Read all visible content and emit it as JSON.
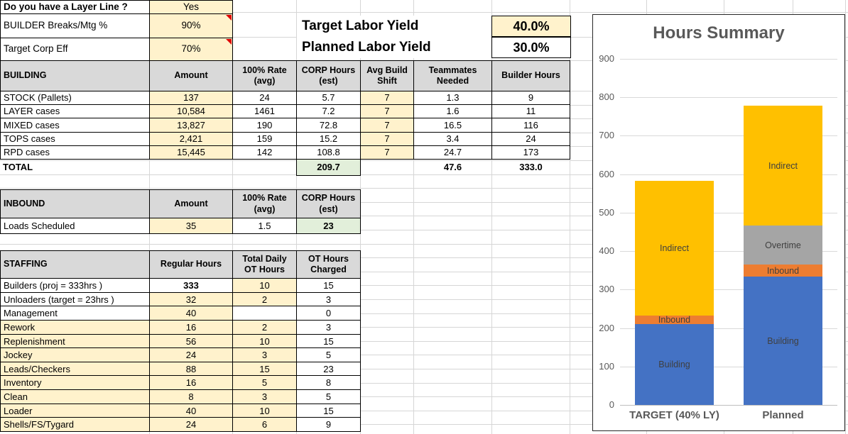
{
  "top_inputs": {
    "rows": [
      {
        "label": "Do you have a Layer Line ?",
        "value": "Yes",
        "bold_label": true,
        "comment_flag": false
      },
      {
        "label": "BUILDER Breaks/Mtg %",
        "value": "90%",
        "bold_label": false,
        "comment_flag": true
      },
      {
        "label": "Target Corp Eff",
        "value": "70%",
        "bold_label": false,
        "comment_flag": true
      }
    ]
  },
  "yield_section": {
    "rows": [
      {
        "label": "Target Labor Yield",
        "value": "40.0%",
        "value_fill": "#FFF2CC"
      },
      {
        "label": "Planned Labor Yield",
        "value": "30.0%",
        "value_fill": "#FFFFFF"
      }
    ]
  },
  "building_table": {
    "headers": [
      "BUILDING",
      "Amount",
      "100% Rate (avg)",
      "CORP Hours (est)",
      "Avg Build Shift",
      "Teammates Needed",
      "Builder Hours"
    ],
    "rows": [
      [
        "STOCK (Pallets)",
        "137",
        "24",
        "5.7",
        "7",
        "1.3",
        "9"
      ],
      [
        "LAYER cases",
        "10,584",
        "1461",
        "7.2",
        "7",
        "1.6",
        "11"
      ],
      [
        "MIXED cases",
        "13,827",
        "190",
        "72.8",
        "7",
        "16.5",
        "116"
      ],
      [
        "TOPS cases",
        "2,421",
        "159",
        "15.2",
        "7",
        "3.4",
        "24"
      ],
      [
        "RPD cases",
        "15,445",
        "142",
        "108.8",
        "7",
        "24.7",
        "173"
      ]
    ],
    "total_row": {
      "label": "TOTAL",
      "corp_hours": "209.7",
      "teammates": "47.6",
      "builder_hours": "333.0"
    }
  },
  "inbound_table": {
    "headers": [
      "INBOUND",
      "Amount",
      "100% Rate (avg)",
      "CORP Hours (est)"
    ],
    "rows": [
      [
        "Loads Scheduled",
        "35",
        "1.5",
        "23"
      ]
    ]
  },
  "staffing_table": {
    "headers": [
      "STAFFING",
      "Regular Hours",
      "Total Daily OT Hours",
      "OT Hours Charged"
    ],
    "rows": [
      {
        "cells": [
          "Builders (proj = 333hrs )",
          "333",
          "10",
          "15"
        ],
        "fills": [
          "w",
          "w",
          "c",
          "w"
        ],
        "bold_regular": true
      },
      {
        "cells": [
          "Unloaders (target = 23hrs )",
          "32",
          "2",
          "3"
        ],
        "fills": [
          "w",
          "c",
          "c",
          "w"
        ],
        "bold_regular": false
      },
      {
        "cells": [
          "Management",
          "40",
          "",
          "0"
        ],
        "fills": [
          "w",
          "c",
          "w",
          "w"
        ],
        "bold_regular": false
      },
      {
        "cells": [
          "Rework",
          "16",
          "2",
          "3"
        ],
        "fills": [
          "c",
          "c",
          "c",
          "w"
        ],
        "bold_regular": false
      },
      {
        "cells": [
          "Replenishment",
          "56",
          "10",
          "15"
        ],
        "fills": [
          "c",
          "c",
          "c",
          "w"
        ],
        "bold_regular": false
      },
      {
        "cells": [
          "Jockey",
          "24",
          "3",
          "5"
        ],
        "fills": [
          "c",
          "c",
          "c",
          "w"
        ],
        "bold_regular": false
      },
      {
        "cells": [
          "Leads/Checkers",
          "88",
          "15",
          "23"
        ],
        "fills": [
          "c",
          "c",
          "c",
          "w"
        ],
        "bold_regular": false
      },
      {
        "cells": [
          "Inventory",
          "16",
          "5",
          "8"
        ],
        "fills": [
          "c",
          "c",
          "c",
          "w"
        ],
        "bold_regular": false
      },
      {
        "cells": [
          "Clean",
          "8",
          "3",
          "5"
        ],
        "fills": [
          "c",
          "c",
          "c",
          "w"
        ],
        "bold_regular": false
      },
      {
        "cells": [
          "Loader",
          "40",
          "10",
          "15"
        ],
        "fills": [
          "c",
          "c",
          "c",
          "w"
        ],
        "bold_regular": false
      },
      {
        "cells": [
          "Shells/FS/Tygard",
          "24",
          "6",
          "9"
        ],
        "fills": [
          "c",
          "c",
          "c",
          "w"
        ],
        "bold_regular": false
      }
    ]
  },
  "chart_data": {
    "type": "bar",
    "stacked": true,
    "title": "Hours Summary",
    "categories": [
      "TARGET (40% LY)",
      "Planned"
    ],
    "series": [
      {
        "name": "Building",
        "color": "#4472C4",
        "values": [
          210,
          333
        ]
      },
      {
        "name": "Inbound",
        "color": "#ED7D31",
        "values": [
          23,
          32
        ]
      },
      {
        "name": "Overtime",
        "color": "#A5A5A5",
        "values": [
          0,
          101
        ]
      },
      {
        "name": "Indirect",
        "color": "#FFC000",
        "values": [
          349,
          312
        ]
      }
    ],
    "totals": [
      582,
      778
    ],
    "ylim": [
      0,
      900
    ],
    "ytick_step": 100,
    "grid": true,
    "legend": "none",
    "segment_labels": "series-name-inside-nonzero-segments",
    "xlabel": "",
    "ylabel": ""
  },
  "colors": {
    "input_fill": "#FFF2CC",
    "header_fill": "#D9D9D9",
    "result_fill": "#E2EFDA",
    "comment_flag": "#E00000",
    "chart_text": "#595959",
    "sheet_gridline": "#D6D6D6",
    "chart_gridline": "#D9D9D9"
  }
}
